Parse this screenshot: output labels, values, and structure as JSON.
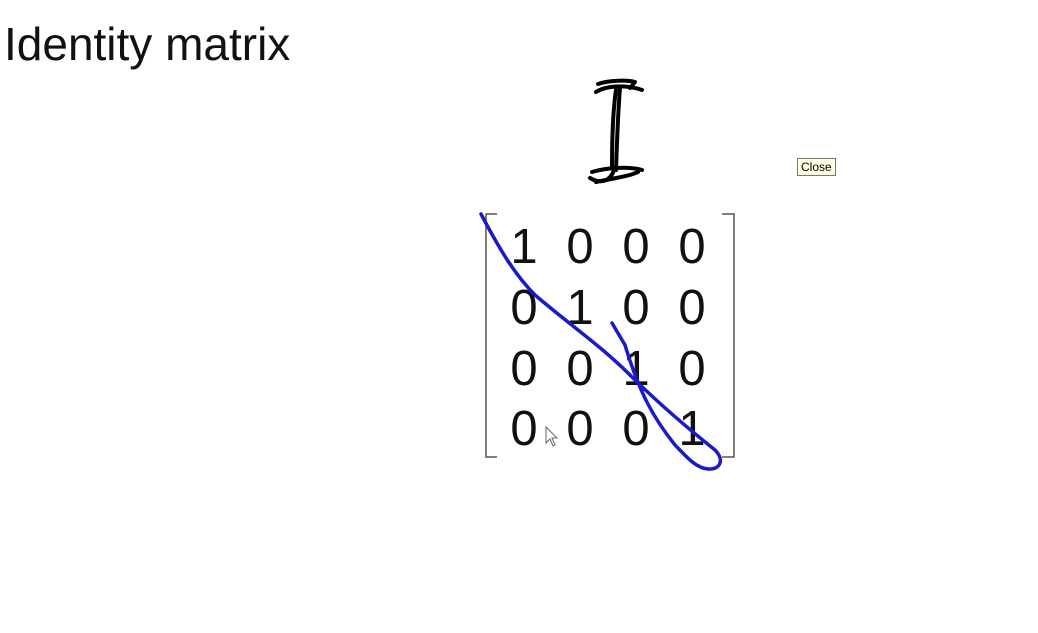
{
  "title": "Identity matrix",
  "tooltip": {
    "close_label": "Close"
  },
  "symbol": {
    "name": "I"
  },
  "matrix": {
    "rows": [
      [
        "1",
        "0",
        "0",
        "0"
      ],
      [
        "0",
        "1",
        "0",
        "0"
      ],
      [
        "0",
        "0",
        "1",
        "0"
      ],
      [
        "0",
        "0",
        "0",
        "1"
      ]
    ]
  },
  "colors": {
    "text": "#111111",
    "ink_black": "#000000",
    "ink_blue": "#1a1acc",
    "tooltip_bg": "#ffffe1"
  },
  "icons": {
    "cursor": "mouse-pointer-icon",
    "annotation": "diagonal-loop-annotation"
  }
}
